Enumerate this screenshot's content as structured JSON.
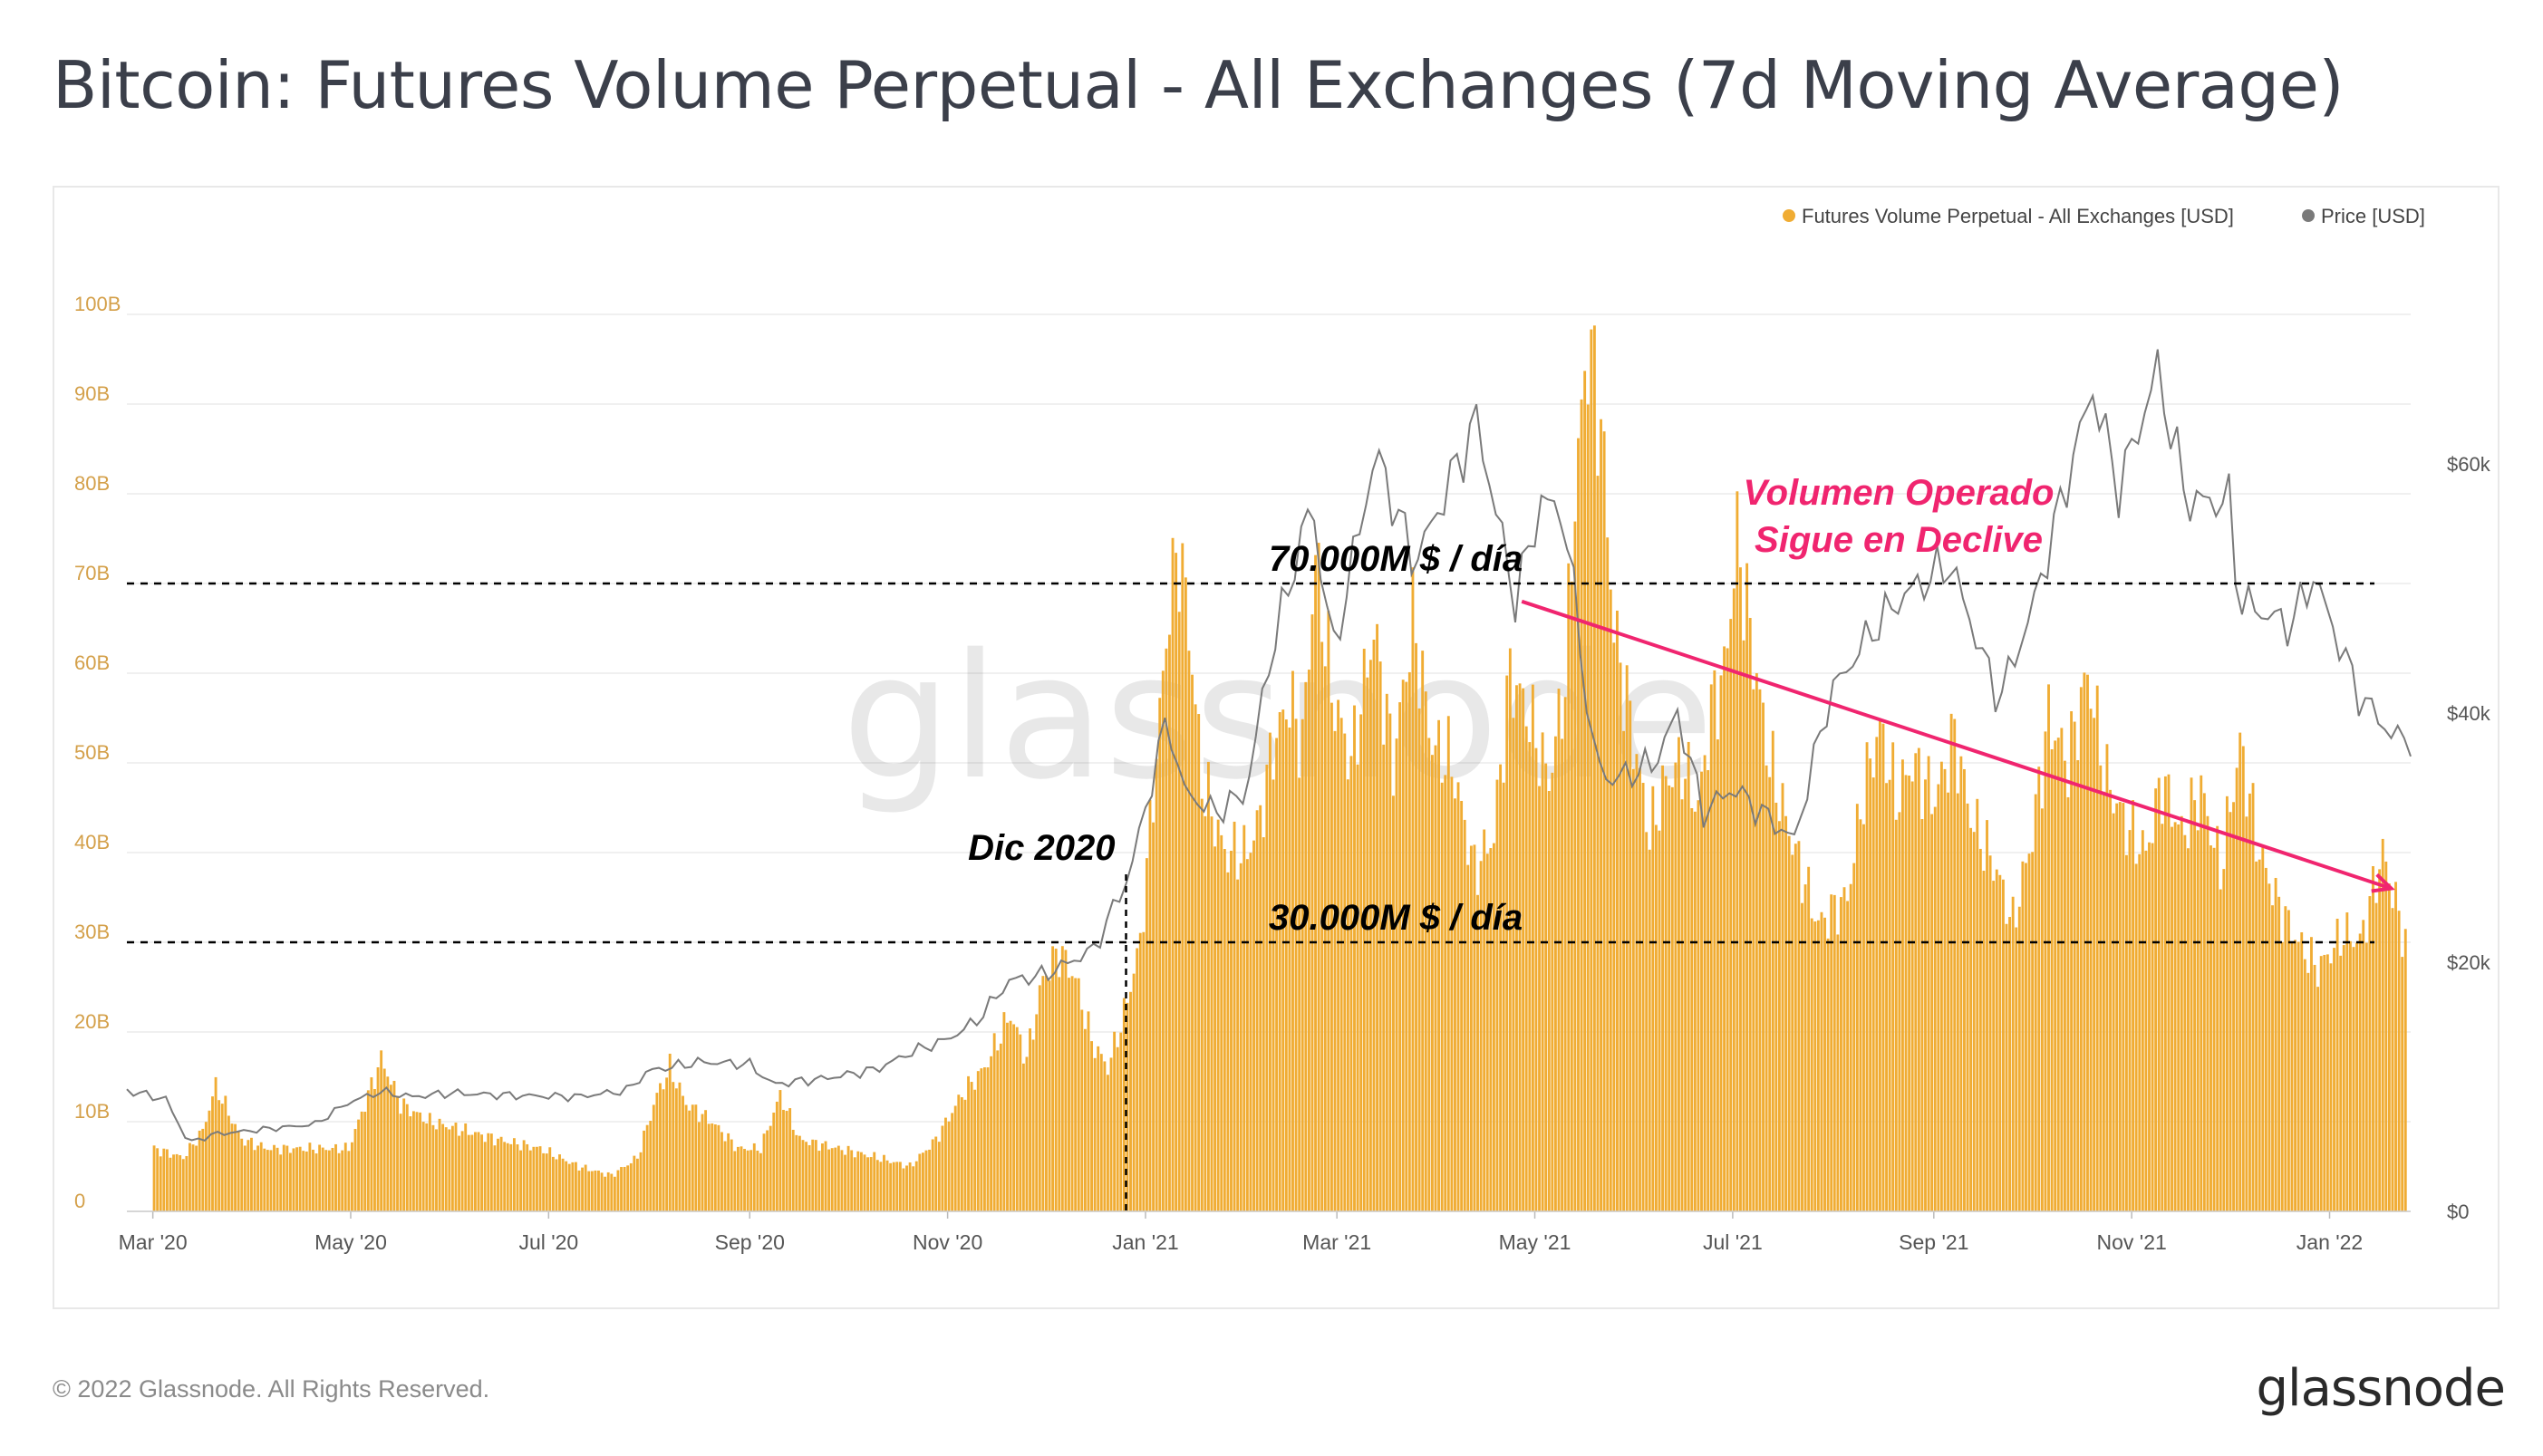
{
  "title": "Bitcoin: Futures Volume Perpetual - All Exchanges (7d Moving Average)",
  "footer": "© 2022 Glassnode. All Rights Reserved.",
  "brand": "glassnode",
  "watermark": "glassnode",
  "colors": {
    "volume": "#f0ac33",
    "price": "#7a7a7a",
    "annotation": "#f0256f",
    "text": "#000000"
  },
  "chart_data": {
    "type": "bar",
    "title": "Bitcoin: Futures Volume Perpetual - All Exchanges (7d Moving Average)",
    "legend_placement": "top-right",
    "grid": true,
    "x_range": [
      "2020-02-22",
      "2022-01-26"
    ],
    "x_ticks": [
      {
        "label": "Mar '20",
        "date": "2020-03-01"
      },
      {
        "label": "May '20",
        "date": "2020-05-01"
      },
      {
        "label": "Jul '20",
        "date": "2020-07-01"
      },
      {
        "label": "Sep '20",
        "date": "2020-09-01"
      },
      {
        "label": "Nov '20",
        "date": "2020-11-01"
      },
      {
        "label": "Jan '21",
        "date": "2021-01-01"
      },
      {
        "label": "Mar '21",
        "date": "2021-03-01"
      },
      {
        "label": "May '21",
        "date": "2021-05-01"
      },
      {
        "label": "Jul '21",
        "date": "2021-07-01"
      },
      {
        "label": "Sep '21",
        "date": "2021-09-01"
      },
      {
        "label": "Nov '21",
        "date": "2021-11-01"
      },
      {
        "label": "Jan '22",
        "date": "2022-01-01"
      }
    ],
    "y_left": {
      "ylim": [
        0,
        100000000000
      ],
      "ticks": [
        {
          "label": "0",
          "value": 0
        },
        {
          "label": "10B",
          "value": 10000000000
        },
        {
          "label": "20B",
          "value": 20000000000
        },
        {
          "label": "30B",
          "value": 30000000000
        },
        {
          "label": "40B",
          "value": 40000000000
        },
        {
          "label": "50B",
          "value": 50000000000
        },
        {
          "label": "60B",
          "value": 60000000000
        },
        {
          "label": "70B",
          "value": 70000000000
        },
        {
          "label": "80B",
          "value": 80000000000
        },
        {
          "label": "90B",
          "value": 90000000000
        },
        {
          "label": "100B",
          "value": 100000000000
        }
      ]
    },
    "y_right": {
      "ylim": [
        0,
        72000
      ],
      "scale": "linear",
      "ticks": [
        {
          "label": "$0",
          "value": 0
        },
        {
          "label": "$20k",
          "value": 20000
        },
        {
          "label": "$40k",
          "value": 40000
        },
        {
          "label": "$60k",
          "value": 60000
        }
      ]
    },
    "series": [
      {
        "name": "Futures Volume Perpetual - All Exchanges [USD]",
        "type": "bar",
        "unit": "USD (billions)",
        "points": [
          [
            "2020-03-01",
            7
          ],
          [
            "2020-03-10",
            6
          ],
          [
            "2020-03-16",
            9
          ],
          [
            "2020-03-20",
            14
          ],
          [
            "2020-03-28",
            8
          ],
          [
            "2020-04-05",
            7
          ],
          [
            "2020-04-15",
            7
          ],
          [
            "2020-04-30",
            7
          ],
          [
            "2020-05-05",
            12
          ],
          [
            "2020-05-10",
            17
          ],
          [
            "2020-05-16",
            12
          ],
          [
            "2020-05-25",
            10
          ],
          [
            "2020-06-05",
            9
          ],
          [
            "2020-06-15",
            8
          ],
          [
            "2020-06-28",
            7
          ],
          [
            "2020-07-10",
            5
          ],
          [
            "2020-07-20",
            4
          ],
          [
            "2020-07-28",
            6
          ],
          [
            "2020-08-03",
            13
          ],
          [
            "2020-08-07",
            16
          ],
          [
            "2020-08-12",
            12
          ],
          [
            "2020-08-20",
            10
          ],
          [
            "2020-08-28",
            7
          ],
          [
            "2020-09-04",
            7
          ],
          [
            "2020-09-10",
            13
          ],
          [
            "2020-09-16",
            8
          ],
          [
            "2020-09-28",
            7
          ],
          [
            "2020-10-10",
            6
          ],
          [
            "2020-10-20",
            5
          ],
          [
            "2020-10-28",
            8
          ],
          [
            "2020-11-05",
            13
          ],
          [
            "2020-11-12",
            16
          ],
          [
            "2020-11-20",
            22
          ],
          [
            "2020-11-25",
            17
          ],
          [
            "2020-11-30",
            26
          ],
          [
            "2020-12-05",
            29
          ],
          [
            "2020-12-10",
            26
          ],
          [
            "2020-12-15",
            19
          ],
          [
            "2020-12-20",
            16
          ],
          [
            "2020-12-25",
            22
          ],
          [
            "2020-12-30",
            30
          ],
          [
            "2021-01-04",
            51
          ],
          [
            "2021-01-08",
            68
          ],
          [
            "2021-01-11",
            74
          ],
          [
            "2021-01-14",
            65
          ],
          [
            "2021-01-18",
            48
          ],
          [
            "2021-01-25",
            40
          ],
          [
            "2021-02-01",
            40
          ],
          [
            "2021-02-05",
            44
          ],
          [
            "2021-02-09",
            52
          ],
          [
            "2021-02-14",
            57
          ],
          [
            "2021-02-18",
            52
          ],
          [
            "2021-02-22",
            73
          ],
          [
            "2021-02-27",
            58
          ],
          [
            "2021-03-05",
            50
          ],
          [
            "2021-03-12",
            65
          ],
          [
            "2021-03-18",
            50
          ],
          [
            "2021-03-24",
            66
          ],
          [
            "2021-03-30",
            52
          ],
          [
            "2021-04-05",
            50
          ],
          [
            "2021-04-12",
            38
          ],
          [
            "2021-04-18",
            42
          ],
          [
            "2021-04-23",
            60
          ],
          [
            "2021-04-28",
            56
          ],
          [
            "2021-05-05",
            48
          ],
          [
            "2021-05-10",
            59
          ],
          [
            "2021-05-13",
            80
          ],
          [
            "2021-05-17",
            97
          ],
          [
            "2021-05-21",
            88
          ],
          [
            "2021-05-25",
            65
          ],
          [
            "2021-05-30",
            55
          ],
          [
            "2021-06-05",
            42
          ],
          [
            "2021-06-10",
            48
          ],
          [
            "2021-06-15",
            50
          ],
          [
            "2021-06-20",
            45
          ],
          [
            "2021-06-24",
            56
          ],
          [
            "2021-06-28",
            60
          ],
          [
            "2021-07-02",
            75
          ],
          [
            "2021-07-07",
            62
          ],
          [
            "2021-07-12",
            50
          ],
          [
            "2021-07-20",
            40
          ],
          [
            "2021-07-27",
            32
          ],
          [
            "2021-08-05",
            35
          ],
          [
            "2021-08-10",
            47
          ],
          [
            "2021-08-15",
            54
          ],
          [
            "2021-08-20",
            46
          ],
          [
            "2021-08-25",
            50
          ],
          [
            "2021-09-01",
            46
          ],
          [
            "2021-09-07",
            53
          ],
          [
            "2021-09-12",
            44
          ],
          [
            "2021-09-20",
            38
          ],
          [
            "2021-09-25",
            32
          ],
          [
            "2021-10-01",
            42
          ],
          [
            "2021-10-06",
            55
          ],
          [
            "2021-10-12",
            50
          ],
          [
            "2021-10-18",
            60
          ],
          [
            "2021-10-24",
            48
          ],
          [
            "2021-10-30",
            43
          ],
          [
            "2021-11-05",
            40
          ],
          [
            "2021-11-10",
            48
          ],
          [
            "2021-11-16",
            42
          ],
          [
            "2021-11-22",
            47
          ],
          [
            "2021-11-28",
            38
          ],
          [
            "2021-12-04",
            52
          ],
          [
            "2021-12-10",
            40
          ],
          [
            "2021-12-16",
            34
          ],
          [
            "2021-12-22",
            30
          ],
          [
            "2021-12-28",
            27
          ],
          [
            "2022-01-05",
            31
          ],
          [
            "2022-01-10",
            30
          ],
          [
            "2022-01-17",
            40
          ],
          [
            "2022-01-24",
            30
          ]
        ]
      },
      {
        "name": "Price [USD]",
        "type": "line",
        "unit": "USD",
        "points": [
          [
            "2020-02-22",
            9700
          ],
          [
            "2020-03-05",
            9000
          ],
          [
            "2020-03-12",
            5500
          ],
          [
            "2020-03-20",
            6200
          ],
          [
            "2020-04-01",
            6500
          ],
          [
            "2020-04-20",
            7000
          ],
          [
            "2020-04-30",
            8700
          ],
          [
            "2020-05-10",
            9600
          ],
          [
            "2020-05-20",
            9200
          ],
          [
            "2020-06-01",
            9500
          ],
          [
            "2020-06-20",
            9300
          ],
          [
            "2020-07-10",
            9200
          ],
          [
            "2020-07-25",
            9700
          ],
          [
            "2020-08-01",
            11300
          ],
          [
            "2020-08-17",
            12000
          ],
          [
            "2020-09-01",
            11800
          ],
          [
            "2020-09-08",
            10200
          ],
          [
            "2020-09-25",
            10700
          ],
          [
            "2020-10-10",
            11400
          ],
          [
            "2020-10-21",
            12800
          ],
          [
            "2020-11-01",
            13800
          ],
          [
            "2020-11-10",
            15300
          ],
          [
            "2020-11-20",
            18500
          ],
          [
            "2020-12-01",
            19000
          ],
          [
            "2020-12-16",
            21000
          ],
          [
            "2020-12-27",
            27000
          ],
          [
            "2021-01-08",
            40000
          ],
          [
            "2021-01-12",
            34000
          ],
          [
            "2021-01-22",
            32000
          ],
          [
            "2021-02-01",
            33500
          ],
          [
            "2021-02-08",
            44000
          ],
          [
            "2021-02-21",
            57000
          ],
          [
            "2021-02-28",
            45000
          ],
          [
            "2021-03-13",
            61000
          ],
          [
            "2021-03-25",
            52000
          ],
          [
            "2021-04-13",
            63500
          ],
          [
            "2021-04-25",
            49000
          ],
          [
            "2021-05-03",
            57000
          ],
          [
            "2021-05-10",
            56000
          ],
          [
            "2021-05-19",
            37000
          ],
          [
            "2021-05-24",
            34500
          ],
          [
            "2021-06-07",
            36000
          ],
          [
            "2021-06-14",
            40000
          ],
          [
            "2021-06-22",
            32000
          ],
          [
            "2021-07-01",
            34000
          ],
          [
            "2021-07-20",
            29800
          ],
          [
            "2021-07-31",
            41500
          ],
          [
            "2021-08-14",
            47000
          ],
          [
            "2021-08-23",
            49500
          ],
          [
            "2021-09-06",
            52000
          ],
          [
            "2021-09-21",
            41000
          ],
          [
            "2021-10-01",
            48000
          ],
          [
            "2021-10-15",
            61500
          ],
          [
            "2021-10-20",
            66000
          ],
          [
            "2021-10-28",
            58000
          ],
          [
            "2021-11-09",
            67500
          ],
          [
            "2021-11-18",
            57000
          ],
          [
            "2021-12-01",
            57000
          ],
          [
            "2021-12-04",
            49000
          ],
          [
            "2021-12-20",
            47000
          ],
          [
            "2021-12-27",
            51000
          ],
          [
            "2022-01-10",
            41500
          ],
          [
            "2022-01-21",
            38000
          ],
          [
            "2022-01-26",
            38000
          ]
        ]
      }
    ],
    "annotations": [
      {
        "text": "70.000M $ / día",
        "type": "hline",
        "value": 70000000000
      },
      {
        "text": "30.000M $ / día",
        "type": "hline",
        "value": 30000000000
      },
      {
        "text": "Dic 2020",
        "type": "vline",
        "date": "2020-12-26"
      },
      {
        "text": "Volumen Operado",
        "text2": "Sigue en Declive",
        "type": "trend",
        "from": [
          "2021-04-27",
          68000000000
        ],
        "to": [
          "2022-01-20",
          36000000000
        ]
      }
    ]
  }
}
